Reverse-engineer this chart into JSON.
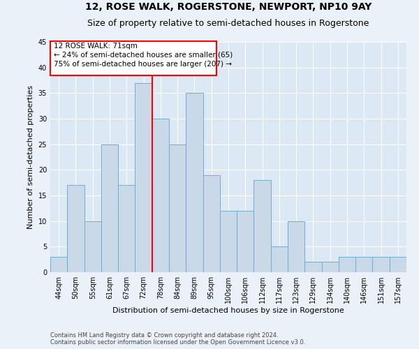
{
  "title": "12, ROSE WALK, ROGERSTONE, NEWPORT, NP10 9AY",
  "subtitle": "Size of property relative to semi-detached houses in Rogerstone",
  "xlabel": "Distribution of semi-detached houses by size in Rogerstone",
  "ylabel": "Number of semi-detached properties",
  "categories": [
    "44sqm",
    "50sqm",
    "55sqm",
    "61sqm",
    "67sqm",
    "72sqm",
    "78sqm",
    "84sqm",
    "89sqm",
    "95sqm",
    "100sqm",
    "106sqm",
    "112sqm",
    "117sqm",
    "123sqm",
    "129sqm",
    "134sqm",
    "140sqm",
    "146sqm",
    "151sqm",
    "157sqm"
  ],
  "values": [
    3,
    17,
    10,
    25,
    17,
    37,
    30,
    25,
    35,
    19,
    12,
    12,
    18,
    5,
    10,
    2,
    2,
    3,
    3,
    3,
    3
  ],
  "bar_color": "#c9d9e8",
  "bar_edge_color": "#6baed6",
  "vline_x_idx": 5,
  "vline_color": "red",
  "annotation_title": "12 ROSE WALK: 71sqm",
  "annotation_line1": "← 24% of semi-detached houses are smaller (65)",
  "annotation_line2": "75% of semi-detached houses are larger (207) →",
  "annotation_box_color": "white",
  "annotation_box_edge": "red",
  "ylim": [
    0,
    45
  ],
  "yticks": [
    0,
    5,
    10,
    15,
    20,
    25,
    30,
    35,
    40,
    45
  ],
  "footer_line1": "Contains HM Land Registry data © Crown copyright and database right 2024.",
  "footer_line2": "Contains public sector information licensed under the Open Government Licence v3.0.",
  "bg_color": "#eaf1f8",
  "plot_bg_color": "#dce9f5",
  "grid_color": "white",
  "title_fontsize": 10,
  "subtitle_fontsize": 9,
  "tick_fontsize": 7,
  "label_fontsize": 8,
  "footer_fontsize": 6,
  "annot_fontsize": 7.5
}
